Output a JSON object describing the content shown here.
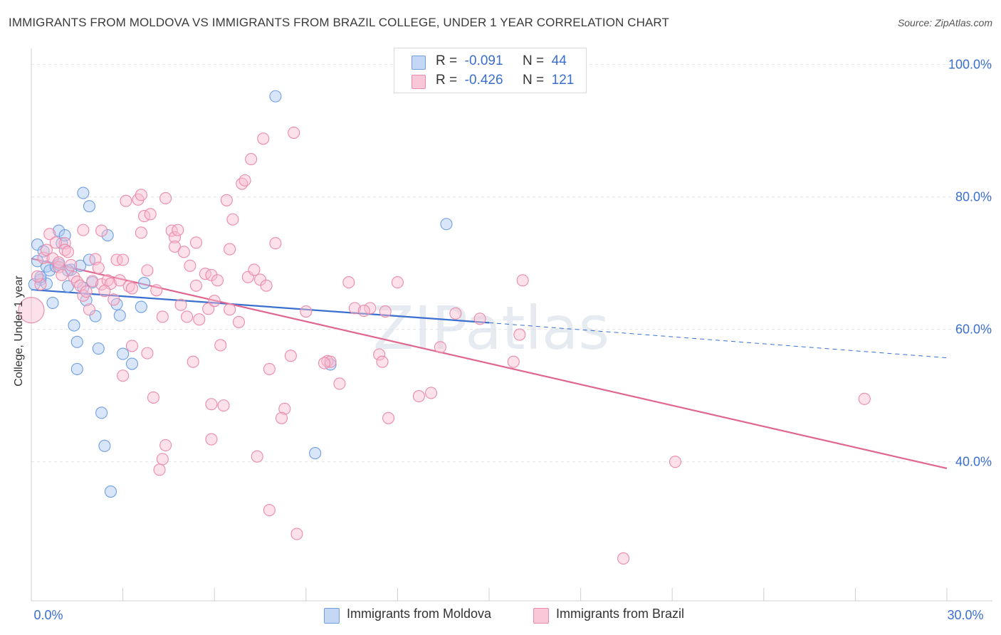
{
  "title": "IMMIGRANTS FROM MOLDOVA VS IMMIGRANTS FROM BRAZIL COLLEGE, UNDER 1 YEAR CORRELATION CHART",
  "source": "Source: ZipAtlas.com",
  "watermark": "ZIPatlas",
  "legend": {
    "r_label": "R =",
    "n_label": "N =",
    "rows": [
      {
        "r": "-0.091",
        "n": "44",
        "color": "#aac8f2",
        "border": "#6f9fe0"
      },
      {
        "r": "-0.426",
        "n": "121",
        "color": "#f8bcd0",
        "border": "#eb8aaa"
      }
    ]
  },
  "bottom_legend": [
    "Immigrants from Moldova",
    "Immigrants from Brazil"
  ],
  "chart_data": {
    "type": "scatter",
    "xlabel": "",
    "ylabel": "College, Under 1 year",
    "xlim": [
      0,
      30
    ],
    "ylim": [
      19,
      102
    ],
    "x_ticks": [
      {
        "value": 0,
        "label": "0.0%"
      },
      {
        "value": 30,
        "label": "30.0%"
      }
    ],
    "y_ticks": [
      {
        "value": 40,
        "label": "40.0%"
      },
      {
        "value": 60,
        "label": "60.0%"
      },
      {
        "value": 80,
        "label": "80.0%"
      },
      {
        "value": 100,
        "label": "100.0%"
      }
    ],
    "grid": true,
    "legend_position": "top-center",
    "series": [
      {
        "name": "Immigrants from Moldova",
        "color": "#6f9fe0",
        "fill": "#aac8f2",
        "trend": {
          "x0": 0,
          "y0": 66.0,
          "x1": 15.0,
          "y1": 61.0,
          "dash_x1": 30,
          "dash_y1": 55.7
        },
        "points": [
          [
            0.2,
            72.8
          ],
          [
            0.3,
            67.5
          ],
          [
            0.2,
            70.3
          ],
          [
            0.4,
            71.8
          ],
          [
            0.5,
            69.5
          ],
          [
            0.5,
            66.9
          ],
          [
            0.6,
            68.9
          ],
          [
            0.7,
            64.0
          ],
          [
            0.8,
            69.5
          ],
          [
            0.9,
            69.8
          ],
          [
            0.9,
            74.9
          ],
          [
            1.0,
            73.0
          ],
          [
            1.1,
            74.2
          ],
          [
            1.2,
            66.5
          ],
          [
            1.3,
            69.0
          ],
          [
            1.4,
            60.6
          ],
          [
            1.5,
            58.1
          ],
          [
            1.6,
            69.6
          ],
          [
            1.7,
            66.3
          ],
          [
            1.7,
            80.6
          ],
          [
            1.8,
            64.4
          ],
          [
            1.9,
            70.5
          ],
          [
            1.9,
            78.6
          ],
          [
            1.5,
            54.0
          ],
          [
            2.0,
            67.1
          ],
          [
            2.1,
            62.0
          ],
          [
            2.2,
            57.1
          ],
          [
            2.3,
            47.4
          ],
          [
            2.4,
            42.4
          ],
          [
            2.5,
            74.2
          ],
          [
            2.6,
            35.5
          ],
          [
            2.8,
            63.8
          ],
          [
            2.9,
            62.1
          ],
          [
            3.0,
            56.3
          ],
          [
            3.3,
            54.8
          ],
          [
            3.6,
            63.4
          ],
          [
            3.7,
            67.0
          ],
          [
            8.0,
            95.2
          ],
          [
            9.3,
            41.3
          ],
          [
            9.8,
            54.7
          ],
          [
            13.6,
            75.9
          ],
          [
            0.1,
            66.8
          ],
          [
            0.3,
            67.9
          ],
          [
            1.2,
            68.9
          ]
        ]
      },
      {
        "name": "Immigrants from Brazil",
        "color": "#eb8aaa",
        "fill": "#f8bcd0",
        "trend": {
          "x0": 0,
          "y0": 70.7,
          "x1": 30,
          "y1": 39.0
        },
        "points": [
          [
            0.0,
            62.9
          ],
          [
            0.3,
            66.8
          ],
          [
            0.4,
            70.8
          ],
          [
            0.5,
            72.0
          ],
          [
            0.6,
            74.4
          ],
          [
            0.7,
            70.7
          ],
          [
            0.9,
            69.4
          ],
          [
            0.9,
            70.1
          ],
          [
            1.1,
            73.0
          ],
          [
            1.1,
            72.0
          ],
          [
            1.2,
            71.7
          ],
          [
            1.3,
            69.7
          ],
          [
            1.4,
            67.9
          ],
          [
            1.5,
            67.2
          ],
          [
            1.6,
            66.6
          ],
          [
            1.7,
            65.1
          ],
          [
            1.7,
            75.0
          ],
          [
            1.8,
            65.7
          ],
          [
            1.9,
            63.0
          ],
          [
            2.0,
            67.3
          ],
          [
            2.1,
            70.6
          ],
          [
            2.2,
            69.3
          ],
          [
            2.3,
            66.8
          ],
          [
            2.3,
            74.9
          ],
          [
            2.5,
            67.4
          ],
          [
            2.6,
            66.9
          ],
          [
            2.7,
            64.5
          ],
          [
            2.8,
            70.5
          ],
          [
            2.9,
            67.4
          ],
          [
            3.0,
            70.5
          ],
          [
            3.0,
            53.0
          ],
          [
            3.1,
            79.4
          ],
          [
            3.2,
            66.5
          ],
          [
            3.3,
            57.5
          ],
          [
            3.5,
            79.6
          ],
          [
            3.6,
            80.3
          ],
          [
            3.6,
            74.6
          ],
          [
            3.7,
            77.1
          ],
          [
            3.8,
            68.9
          ],
          [
            3.8,
            56.4
          ],
          [
            3.9,
            77.4
          ],
          [
            4.0,
            49.7
          ],
          [
            4.1,
            65.9
          ],
          [
            4.2,
            38.8
          ],
          [
            4.3,
            40.4
          ],
          [
            4.4,
            79.8
          ],
          [
            4.4,
            42.5
          ],
          [
            4.6,
            74.9
          ],
          [
            4.7,
            73.9
          ],
          [
            4.7,
            72.5
          ],
          [
            4.9,
            63.7
          ],
          [
            5.0,
            71.7
          ],
          [
            5.1,
            61.9
          ],
          [
            5.2,
            69.6
          ],
          [
            5.3,
            55.1
          ],
          [
            5.4,
            66.6
          ],
          [
            5.5,
            61.5
          ],
          [
            5.7,
            68.4
          ],
          [
            5.8,
            63.1
          ],
          [
            5.9,
            48.7
          ],
          [
            5.9,
            68.2
          ],
          [
            5.9,
            43.4
          ],
          [
            6.0,
            64.3
          ],
          [
            6.1,
            67.4
          ],
          [
            6.2,
            57.6
          ],
          [
            6.3,
            48.5
          ],
          [
            6.4,
            79.5
          ],
          [
            6.5,
            72.1
          ],
          [
            6.6,
            76.6
          ],
          [
            6.8,
            61.1
          ],
          [
            6.9,
            82.0
          ],
          [
            7.0,
            82.5
          ],
          [
            7.1,
            67.9
          ],
          [
            7.2,
            85.7
          ],
          [
            7.3,
            69.0
          ],
          [
            7.4,
            40.8
          ],
          [
            7.5,
            67.5
          ],
          [
            7.6,
            88.8
          ],
          [
            7.7,
            66.6
          ],
          [
            7.8,
            54.0
          ],
          [
            7.8,
            32.7
          ],
          [
            8.0,
            73.0
          ],
          [
            8.3,
            48.0
          ],
          [
            8.5,
            56.0
          ],
          [
            8.6,
            89.7
          ],
          [
            8.7,
            29.1
          ],
          [
            9.0,
            62.7
          ],
          [
            9.7,
            55.2
          ],
          [
            9.8,
            55.1
          ],
          [
            10.1,
            51.8
          ],
          [
            10.4,
            67.1
          ],
          [
            10.6,
            63.2
          ],
          [
            11.1,
            63.2
          ],
          [
            11.4,
            56.2
          ],
          [
            11.5,
            55.1
          ],
          [
            11.6,
            62.7
          ],
          [
            11.7,
            46.6
          ],
          [
            12.0,
            67.1
          ],
          [
            12.7,
            49.9
          ],
          [
            13.1,
            50.4
          ],
          [
            13.4,
            57.3
          ],
          [
            13.9,
            62.4
          ],
          [
            14.7,
            61.6
          ],
          [
            15.8,
            55.1
          ],
          [
            16.0,
            59.2
          ],
          [
            16.1,
            67.4
          ],
          [
            19.4,
            25.4
          ],
          [
            21.1,
            40.0
          ],
          [
            27.3,
            49.5
          ],
          [
            0.2,
            68.0
          ],
          [
            0.8,
            73.1
          ],
          [
            1.0,
            68.2
          ],
          [
            2.4,
            65.8
          ],
          [
            4.8,
            75.0
          ],
          [
            5.4,
            73.1
          ],
          [
            6.5,
            63.0
          ],
          [
            3.3,
            66.2
          ],
          [
            4.3,
            61.9
          ],
          [
            8.2,
            46.6
          ],
          [
            9.6,
            54.9
          ],
          [
            10.9,
            62.8
          ]
        ]
      }
    ]
  }
}
